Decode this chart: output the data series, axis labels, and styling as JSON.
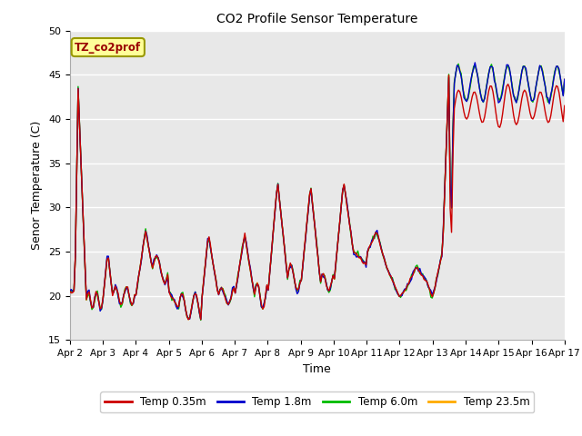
{
  "title": "CO2 Profile Sensor Temperature",
  "xlabel": "Time",
  "ylabel": "Senor Temperature (C)",
  "ylim": [
    15,
    50
  ],
  "annotation_text": "TZ_co2prof",
  "annotation_bg": "#ffff99",
  "annotation_border": "#999900",
  "annotation_text_color": "#990000",
  "bg_color": "#e8e8e8",
  "legend_entries": [
    "Temp 0.35m",
    "Temp 1.8m",
    "Temp 6.0m",
    "Temp 23.5m"
  ],
  "legend_colors": [
    "#cc0000",
    "#0000cc",
    "#00bb00",
    "#ffaa00"
  ],
  "x_tick_labels": [
    "Apr 2",
    "Apr 3",
    "Apr 4",
    "Apr 5",
    "Apr 6",
    "Apr 7",
    "Apr 8",
    "Apr 9",
    "Apr 10",
    "Apr 11",
    "Apr 12",
    "Apr 13",
    "Apr 14",
    "Apr 15",
    "Apr 16",
    "Apr 17"
  ],
  "x_ticks": [
    0,
    1,
    2,
    3,
    4,
    5,
    6,
    7,
    8,
    9,
    10,
    11,
    12,
    13,
    14,
    15
  ],
  "yticks": [
    15,
    20,
    25,
    30,
    35,
    40,
    45,
    50
  ]
}
